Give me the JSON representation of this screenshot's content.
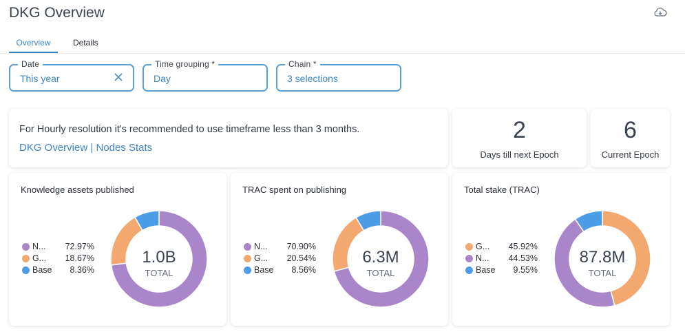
{
  "header": {
    "title": "DKG Overview"
  },
  "tabs": [
    {
      "label": "Overview",
      "active": true
    },
    {
      "label": "Details",
      "active": false
    }
  ],
  "filters": {
    "date": {
      "label": "Date",
      "value": "This year"
    },
    "time_grouping": {
      "label": "Time grouping *",
      "value": "Day"
    },
    "chain": {
      "label": "Chain *",
      "value": "3 selections"
    }
  },
  "notice": {
    "text": "For Hourly resolution it's recommended to use timeframe less than 3 months.",
    "link_overview": "DKG Overview",
    "separator": "|",
    "link_nodes": "Nodes Stats"
  },
  "kpis": [
    {
      "value": "2",
      "label": "Days till next Epoch"
    },
    {
      "value": "6",
      "label": "Current Epoch"
    }
  ],
  "colors": {
    "accent": "#3d86c6",
    "neuro": "#a886c9",
    "gnosis": "#f2a86e",
    "base": "#4c9de6"
  },
  "chart_data": [
    {
      "type": "pie",
      "title": "Knowledge assets published",
      "center_value": "1.0B",
      "center_label": "TOTAL",
      "categories": [
        "N...",
        "G...",
        "Base"
      ],
      "values": [
        72.97,
        18.67,
        8.36
      ],
      "value_labels": [
        "72.97%",
        "18.67%",
        "8.36%"
      ],
      "colors": [
        "#a886c9",
        "#f2a86e",
        "#4c9de6"
      ]
    },
    {
      "type": "pie",
      "title": "TRAC spent on publishing",
      "center_value": "6.3M",
      "center_label": "TOTAL",
      "categories": [
        "N...",
        "G...",
        "Base"
      ],
      "values": [
        70.9,
        20.54,
        8.56
      ],
      "value_labels": [
        "70.90%",
        "20.54%",
        "8.56%"
      ],
      "colors": [
        "#a886c9",
        "#f2a86e",
        "#4c9de6"
      ]
    },
    {
      "type": "pie",
      "title": "Total stake (TRAC)",
      "center_value": "87.8M",
      "center_label": "TOTAL",
      "categories": [
        "G...",
        "N...",
        "Base"
      ],
      "values": [
        45.92,
        44.53,
        9.55
      ],
      "value_labels": [
        "45.92%",
        "44.53%",
        "9.55%"
      ],
      "colors": [
        "#f2a86e",
        "#a886c9",
        "#4c9de6"
      ]
    }
  ]
}
